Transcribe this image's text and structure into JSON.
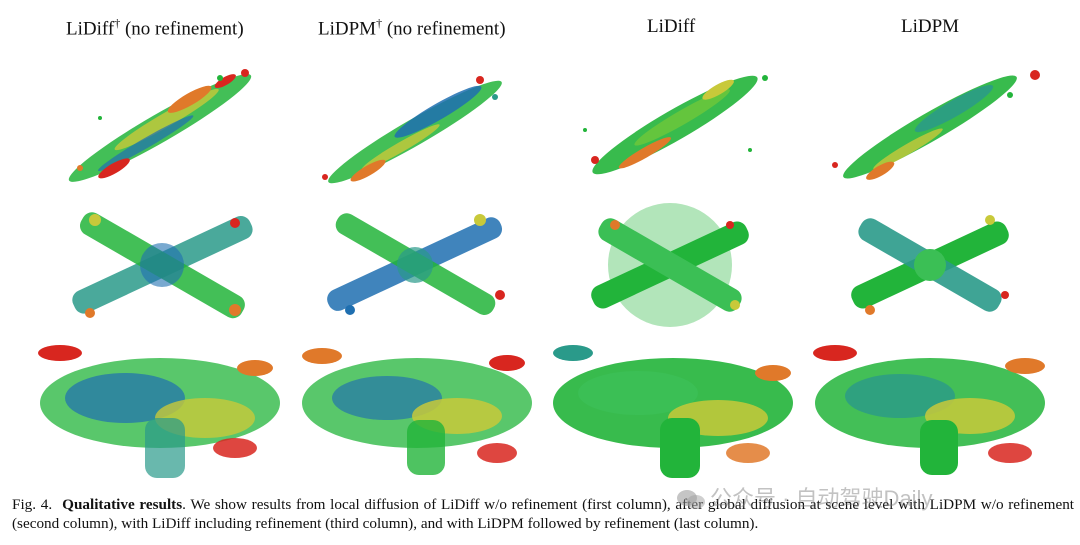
{
  "columns": [
    {
      "title": "LiDiff",
      "sup": "†",
      "note": "(no refinement)"
    },
    {
      "title": "LiDPM",
      "sup": "†",
      "note": "(no refinement)"
    },
    {
      "title": "LiDiff",
      "sup": "",
      "note": ""
    },
    {
      "title": "LiDPM",
      "sup": "",
      "note": ""
    }
  ],
  "caption": {
    "label": "Fig. 4.",
    "bold": "Qualitative results",
    "text": ". We show results from local diffusion of LiDiff w/o refinement (first column), after global diffusion at scene level with LiDPM w/o refinement (second column), with LiDiff including refinement (third column), and with LiDPM followed by refinement (last column)."
  },
  "watermark": "公众号 · 自动驾驶Daily",
  "colors": {
    "green": "#22b43a",
    "blue": "#1f6fb0",
    "yellow": "#c8c93a",
    "orange": "#e0792a",
    "red": "#d8261f",
    "teal": "#2a9a8a"
  }
}
